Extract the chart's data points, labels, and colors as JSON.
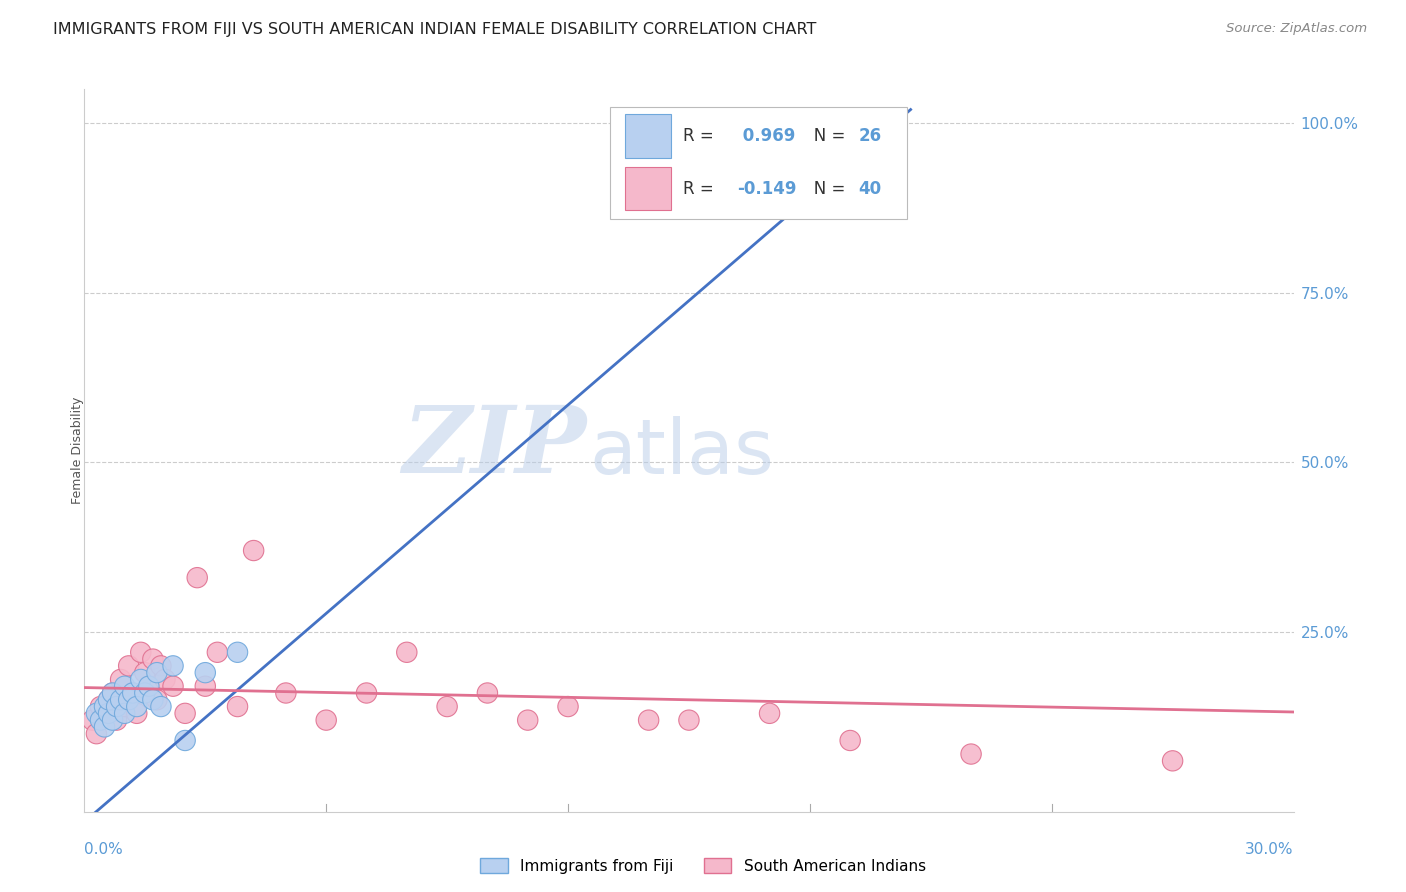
{
  "title": "IMMIGRANTS FROM FIJI VS SOUTH AMERICAN INDIAN FEMALE DISABILITY CORRELATION CHART",
  "source": "Source: ZipAtlas.com",
  "ylabel": "Female Disability",
  "right_ytick_vals": [
    1.0,
    0.75,
    0.5,
    0.25
  ],
  "right_ytick_labels": [
    "100.0%",
    "75.0%",
    "50.0%",
    "25.0%"
  ],
  "xlim": [
    0.0,
    0.3
  ],
  "ylim": [
    -0.015,
    1.05
  ],
  "fiji_color": "#b8d0f0",
  "fiji_edge": "#6fa8dc",
  "sam_color": "#f5b8cb",
  "sam_edge": "#e07090",
  "fiji_line_color": "#4472c4",
  "sam_line_color": "#e07090",
  "fiji_R": "0.969",
  "fiji_N": "26",
  "sam_R": "-0.149",
  "sam_N": "40",
  "legend_color_R": "#4472c4",
  "legend_color_N": "#4472c4",
  "fiji_x": [
    0.003,
    0.004,
    0.005,
    0.005,
    0.006,
    0.006,
    0.007,
    0.007,
    0.008,
    0.009,
    0.01,
    0.01,
    0.011,
    0.012,
    0.013,
    0.014,
    0.015,
    0.016,
    0.017,
    0.018,
    0.019,
    0.022,
    0.025,
    0.03,
    0.038,
    0.2
  ],
  "fiji_y": [
    0.13,
    0.12,
    0.11,
    0.14,
    0.13,
    0.15,
    0.12,
    0.16,
    0.14,
    0.15,
    0.13,
    0.17,
    0.15,
    0.16,
    0.14,
    0.18,
    0.16,
    0.17,
    0.15,
    0.19,
    0.14,
    0.2,
    0.09,
    0.19,
    0.22,
    0.99
  ],
  "sam_x": [
    0.002,
    0.003,
    0.004,
    0.005,
    0.006,
    0.007,
    0.008,
    0.009,
    0.01,
    0.011,
    0.012,
    0.013,
    0.014,
    0.015,
    0.016,
    0.017,
    0.018,
    0.019,
    0.02,
    0.022,
    0.025,
    0.028,
    0.03,
    0.033,
    0.038,
    0.042,
    0.05,
    0.06,
    0.07,
    0.08,
    0.09,
    0.1,
    0.11,
    0.12,
    0.14,
    0.15,
    0.17,
    0.19,
    0.22,
    0.27
  ],
  "sam_y": [
    0.12,
    0.1,
    0.14,
    0.13,
    0.15,
    0.16,
    0.12,
    0.18,
    0.14,
    0.2,
    0.16,
    0.13,
    0.22,
    0.19,
    0.17,
    0.21,
    0.15,
    0.2,
    0.18,
    0.17,
    0.13,
    0.33,
    0.17,
    0.22,
    0.14,
    0.37,
    0.16,
    0.12,
    0.16,
    0.22,
    0.14,
    0.16,
    0.12,
    0.14,
    0.12,
    0.12,
    0.13,
    0.09,
    0.07,
    0.06
  ],
  "watermark_zip": "ZIP",
  "watermark_atlas": "atlas",
  "background_color": "#ffffff",
  "grid_color": "#cccccc",
  "fiji_line_x": [
    0.0,
    0.205
  ],
  "fiji_line_y": [
    -0.03,
    1.02
  ],
  "sam_line_x": [
    0.0,
    0.3
  ],
  "sam_line_y": [
    0.168,
    0.132
  ]
}
